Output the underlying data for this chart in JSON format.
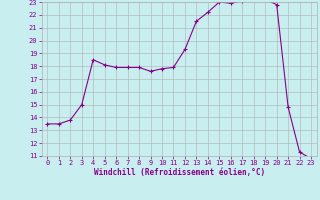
{
  "x": [
    0,
    1,
    2,
    3,
    4,
    5,
    6,
    7,
    8,
    9,
    10,
    11,
    12,
    13,
    14,
    15,
    16,
    17,
    18,
    19,
    20,
    21,
    22,
    23
  ],
  "y": [
    13.5,
    13.5,
    13.8,
    15.0,
    18.5,
    18.1,
    17.9,
    17.9,
    17.9,
    17.6,
    17.8,
    17.9,
    19.3,
    21.5,
    22.2,
    23.0,
    22.9,
    23.1,
    23.2,
    23.2,
    22.8,
    14.8,
    11.3,
    10.8
  ],
  "line_color": "#880088",
  "marker": "+",
  "markersize": 3,
  "linewidth": 0.8,
  "xlabel": "Windchill (Refroidissement éolien,°C)",
  "xlim_min": -0.5,
  "xlim_max": 23.5,
  "ylim_min": 11,
  "ylim_max": 23,
  "yticks": [
    11,
    12,
    13,
    14,
    15,
    16,
    17,
    18,
    19,
    20,
    21,
    22,
    23
  ],
  "xticks": [
    0,
    1,
    2,
    3,
    4,
    5,
    6,
    7,
    8,
    9,
    10,
    11,
    12,
    13,
    14,
    15,
    16,
    17,
    18,
    19,
    20,
    21,
    22,
    23
  ],
  "grid_color": "#b0b0b0",
  "bg_color": "#c8eef0",
  "tick_color": "#880088",
  "label_fontsize": 5,
  "xlabel_fontsize": 5.5
}
